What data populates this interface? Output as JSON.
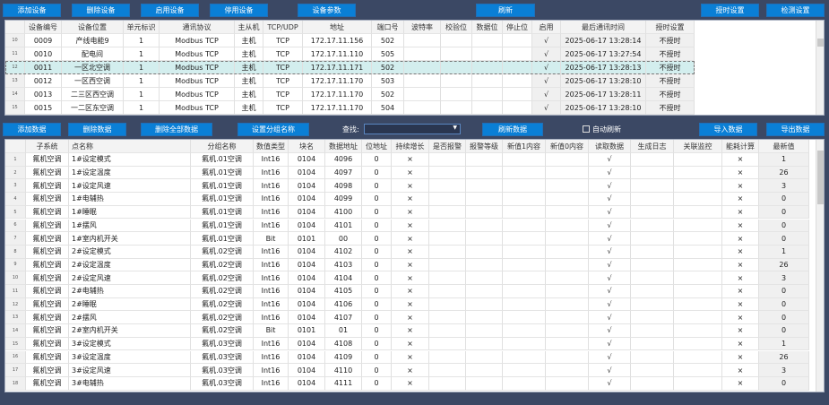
{
  "device_toolbar": {
    "add": "添加设备",
    "delete": "删除设备",
    "enable": "启用设备",
    "disable": "停用设备",
    "params": "设备参数",
    "refresh": "刷新",
    "timing": "授时设置",
    "detect": "检测设置"
  },
  "device_table": {
    "columns": [
      "",
      "设备编号",
      "设备位置",
      "单元标识",
      "通讯协议",
      "主从机",
      "TCP/UDP",
      "地址",
      "端口号",
      "波特率",
      "校验位",
      "数据位",
      "停止位",
      "启用",
      "最后通讯时间",
      "授时设置"
    ],
    "selected_row": 2,
    "rows": [
      [
        "10",
        "0009",
        "产线电能9",
        "1",
        "Modbus TCP",
        "主机",
        "TCP",
        "172.17.11.156",
        "502",
        "",
        "",
        "",
        "",
        "√",
        "2025-06-17 13:28:14",
        "不授时"
      ],
      [
        "11",
        "0010",
        "配电间",
        "1",
        "Modbus TCP",
        "主机",
        "TCP",
        "172.17.11.110",
        "505",
        "",
        "",
        "",
        "",
        "√",
        "2025-06-17 13:27:54",
        "不授时"
      ],
      [
        "12",
        "0011",
        "一区北空调",
        "1",
        "Modbus TCP",
        "主机",
        "TCP",
        "172.17.11.171",
        "502",
        "",
        "",
        "",
        "",
        "√",
        "2025-06-17 13:28:13",
        "不授时"
      ],
      [
        "13",
        "0012",
        "一区西空调",
        "1",
        "Modbus TCP",
        "主机",
        "TCP",
        "172.17.11.170",
        "503",
        "",
        "",
        "",
        "",
        "√",
        "2025-06-17 13:28:10",
        "不授时"
      ],
      [
        "14",
        "0013",
        "二三区西空调",
        "1",
        "Modbus TCP",
        "主机",
        "TCP",
        "172.17.11.170",
        "502",
        "",
        "",
        "",
        "",
        "√",
        "2025-06-17 13:28:11",
        "不授时"
      ],
      [
        "15",
        "0015",
        "一二区东空调",
        "1",
        "Modbus TCP",
        "主机",
        "TCP",
        "172.17.11.170",
        "504",
        "",
        "",
        "",
        "",
        "√",
        "2025-06-17 13:28:10",
        "不授时"
      ]
    ]
  },
  "data_toolbar": {
    "add": "添加数据",
    "delete": "删除数据",
    "delete_all": "删除全部数据",
    "set_group": "设置分组名称",
    "search_label": "查找:",
    "search_value": "",
    "refresh": "刷新数据",
    "auto_refresh": "自动刷新",
    "auto_refresh_checked": false,
    "import": "导入数据",
    "export": "导出数据"
  },
  "data_table": {
    "columns": [
      "",
      "子系统",
      "点名称",
      "分组名称",
      "数值类型",
      "块名",
      "数据地址",
      "位地址",
      "持续增长",
      "是否报警",
      "报警等级",
      "新值1内容",
      "新值0内容",
      "读取数据",
      "生成日志",
      "关联监控",
      "能耗计算",
      "最新值"
    ],
    "rows": [
      [
        "1",
        "氟机空调",
        "1#设定模式",
        "氟机.01空调",
        "Int16",
        "0104",
        "4096",
        "0",
        "×",
        "",
        "",
        "",
        "",
        "√",
        "",
        "",
        "×",
        "1"
      ],
      [
        "2",
        "氟机空调",
        "1#设定温度",
        "氟机.01空调",
        "Int16",
        "0104",
        "4097",
        "0",
        "×",
        "",
        "",
        "",
        "",
        "√",
        "",
        "",
        "×",
        "26"
      ],
      [
        "3",
        "氟机空调",
        "1#设定风速",
        "氟机.01空调",
        "Int16",
        "0104",
        "4098",
        "0",
        "×",
        "",
        "",
        "",
        "",
        "√",
        "",
        "",
        "×",
        "3"
      ],
      [
        "4",
        "氟机空调",
        "1#电辅热",
        "氟机.01空调",
        "Int16",
        "0104",
        "4099",
        "0",
        "×",
        "",
        "",
        "",
        "",
        "√",
        "",
        "",
        "×",
        "0"
      ],
      [
        "5",
        "氟机空调",
        "1#睡眠",
        "氟机.01空调",
        "Int16",
        "0104",
        "4100",
        "0",
        "×",
        "",
        "",
        "",
        "",
        "√",
        "",
        "",
        "×",
        "0"
      ],
      [
        "6",
        "氟机空调",
        "1#摆风",
        "氟机.01空调",
        "Int16",
        "0104",
        "4101",
        "0",
        "×",
        "",
        "",
        "",
        "",
        "√",
        "",
        "",
        "×",
        "0"
      ],
      [
        "7",
        "氟机空调",
        "1#室内机开关",
        "氟机.01空调",
        "Bit",
        "0101",
        "00",
        "0",
        "×",
        "",
        "",
        "",
        "",
        "√",
        "",
        "",
        "×",
        "0"
      ],
      [
        "8",
        "氟机空调",
        "2#设定模式",
        "氟机.02空调",
        "Int16",
        "0104",
        "4102",
        "0",
        "×",
        "",
        "",
        "",
        "",
        "√",
        "",
        "",
        "×",
        "1"
      ],
      [
        "9",
        "氟机空调",
        "2#设定温度",
        "氟机.02空调",
        "Int16",
        "0104",
        "4103",
        "0",
        "×",
        "",
        "",
        "",
        "",
        "√",
        "",
        "",
        "×",
        "26"
      ],
      [
        "10",
        "氟机空调",
        "2#设定风速",
        "氟机.02空调",
        "Int16",
        "0104",
        "4104",
        "0",
        "×",
        "",
        "",
        "",
        "",
        "√",
        "",
        "",
        "×",
        "3"
      ],
      [
        "11",
        "氟机空调",
        "2#电辅热",
        "氟机.02空调",
        "Int16",
        "0104",
        "4105",
        "0",
        "×",
        "",
        "",
        "",
        "",
        "√",
        "",
        "",
        "×",
        "0"
      ],
      [
        "12",
        "氟机空调",
        "2#睡眠",
        "氟机.02空调",
        "Int16",
        "0104",
        "4106",
        "0",
        "×",
        "",
        "",
        "",
        "",
        "√",
        "",
        "",
        "×",
        "0"
      ],
      [
        "13",
        "氟机空调",
        "2#摆风",
        "氟机.02空调",
        "Int16",
        "0104",
        "4107",
        "0",
        "×",
        "",
        "",
        "",
        "",
        "√",
        "",
        "",
        "×",
        "0"
      ],
      [
        "14",
        "氟机空调",
        "2#室内机开关",
        "氟机.02空调",
        "Bit",
        "0101",
        "01",
        "0",
        "×",
        "",
        "",
        "",
        "",
        "√",
        "",
        "",
        "×",
        "0"
      ],
      [
        "15",
        "氟机空调",
        "3#设定模式",
        "氟机.03空调",
        "Int16",
        "0104",
        "4108",
        "0",
        "×",
        "",
        "",
        "",
        "",
        "√",
        "",
        "",
        "×",
        "1"
      ],
      [
        "16",
        "氟机空调",
        "3#设定温度",
        "氟机.03空调",
        "Int16",
        "0104",
        "4109",
        "0",
        "×",
        "",
        "",
        "",
        "",
        "√",
        "",
        "",
        "×",
        "26"
      ],
      [
        "17",
        "氟机空调",
        "3#设定风速",
        "氟机.03空调",
        "Int16",
        "0104",
        "4110",
        "0",
        "×",
        "",
        "",
        "",
        "",
        "√",
        "",
        "",
        "×",
        "3"
      ],
      [
        "18",
        "氟机空调",
        "3#电辅热",
        "氟机.03空调",
        "Int16",
        "0104",
        "4111",
        "0",
        "×",
        "",
        "",
        "",
        "",
        "√",
        "",
        "",
        "×",
        "0"
      ]
    ]
  },
  "colors": {
    "background": "#3b4864",
    "button": "#0a7fd6",
    "selected_row": "#d3eeee"
  }
}
